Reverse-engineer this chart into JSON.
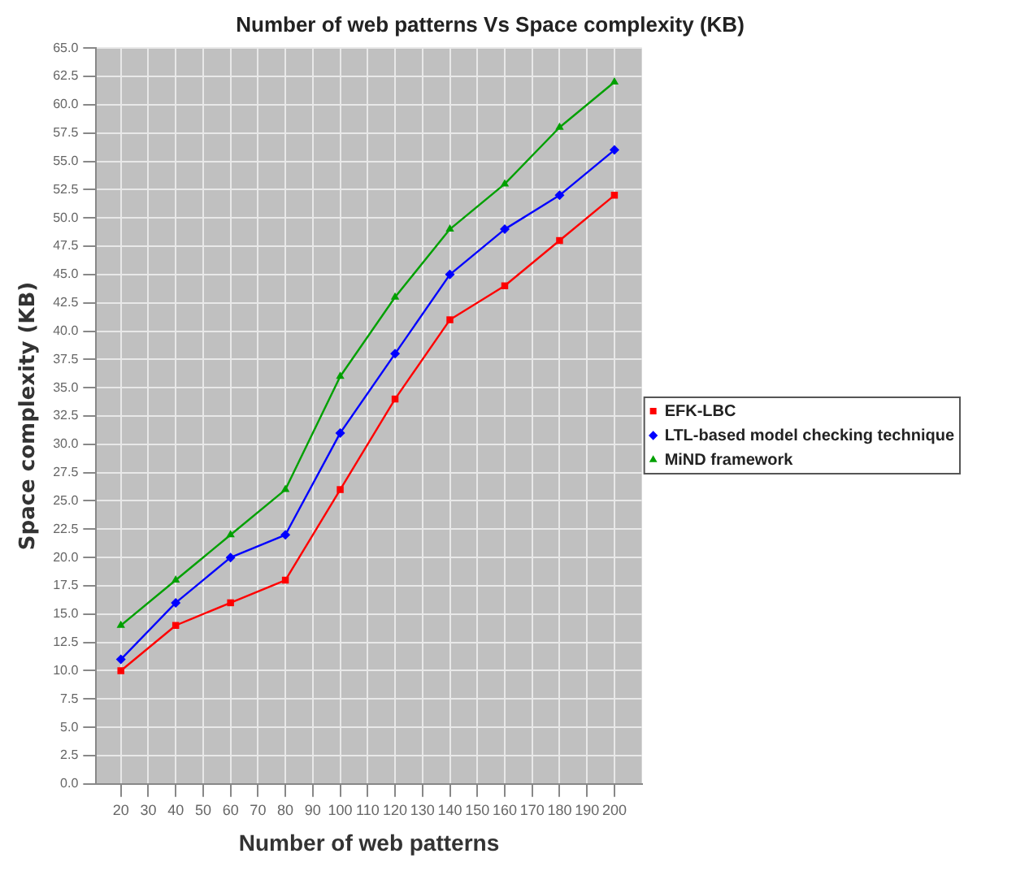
{
  "chart_data": {
    "type": "line",
    "title": "Number of web patterns Vs Space complexity (KB)",
    "xlabel": "Number of web patterns",
    "ylabel": "Space complexity (KB)",
    "x": [
      20,
      40,
      60,
      80,
      100,
      120,
      140,
      160,
      180,
      200
    ],
    "series": [
      {
        "name": "EFK-LBC",
        "color": "#ff0000",
        "marker": "square",
        "values": [
          10,
          14,
          16,
          18,
          26,
          34,
          41,
          44,
          48,
          52
        ]
      },
      {
        "name": "LTL-based model checking technique",
        "color": "#0000ff",
        "marker": "diamond",
        "values": [
          11,
          16,
          20,
          22,
          31,
          38,
          45,
          49,
          52,
          56
        ]
      },
      {
        "name": "MiND framework",
        "color": "#00a000",
        "marker": "triangle",
        "values": [
          14,
          18,
          22,
          26,
          36,
          43,
          49,
          53,
          58,
          62
        ]
      }
    ],
    "xlim": [
      11,
      210
    ],
    "xticks": [
      20,
      30,
      40,
      50,
      60,
      70,
      80,
      90,
      100,
      110,
      120,
      130,
      140,
      150,
      160,
      170,
      180,
      190,
      200
    ],
    "ylim": [
      0,
      65
    ],
    "yticks": [
      {
        "value": 0,
        "label": "0.0"
      },
      {
        "value": 2.5,
        "label": "2.5"
      },
      {
        "value": 5,
        "label": "5.0"
      },
      {
        "value": 7.5,
        "label": "7.5"
      },
      {
        "value": 10,
        "label": "10.0"
      },
      {
        "value": 12.5,
        "label": "12.5"
      },
      {
        "value": 15,
        "label": "15.0"
      },
      {
        "value": 17.5,
        "label": "17.5"
      },
      {
        "value": 20,
        "label": "20.0"
      },
      {
        "value": 22.5,
        "label": "22.5"
      },
      {
        "value": 25,
        "label": "25.0"
      },
      {
        "value": 27.5,
        "label": "27.5"
      },
      {
        "value": 30,
        "label": "30.0"
      },
      {
        "value": 32.5,
        "label": "32.5"
      },
      {
        "value": 35,
        "label": "35.0"
      },
      {
        "value": 37.5,
        "label": "37.5"
      },
      {
        "value": 40,
        "label": "40.0"
      },
      {
        "value": 42.5,
        "label": "42.5"
      },
      {
        "value": 45,
        "label": "45.0"
      },
      {
        "value": 47.5,
        "label": "47.5"
      },
      {
        "value": 50,
        "label": "50.0"
      },
      {
        "value": 52.5,
        "label": "52.5"
      },
      {
        "value": 55,
        "label": "55.0"
      },
      {
        "value": 57.5,
        "label": "57.5"
      },
      {
        "value": 60,
        "label": "60.0"
      },
      {
        "value": 62.5,
        "label": "62.5"
      },
      {
        "value": 65,
        "label": "65.0"
      }
    ],
    "grid": true,
    "legend": "right",
    "line_style": "solid"
  }
}
